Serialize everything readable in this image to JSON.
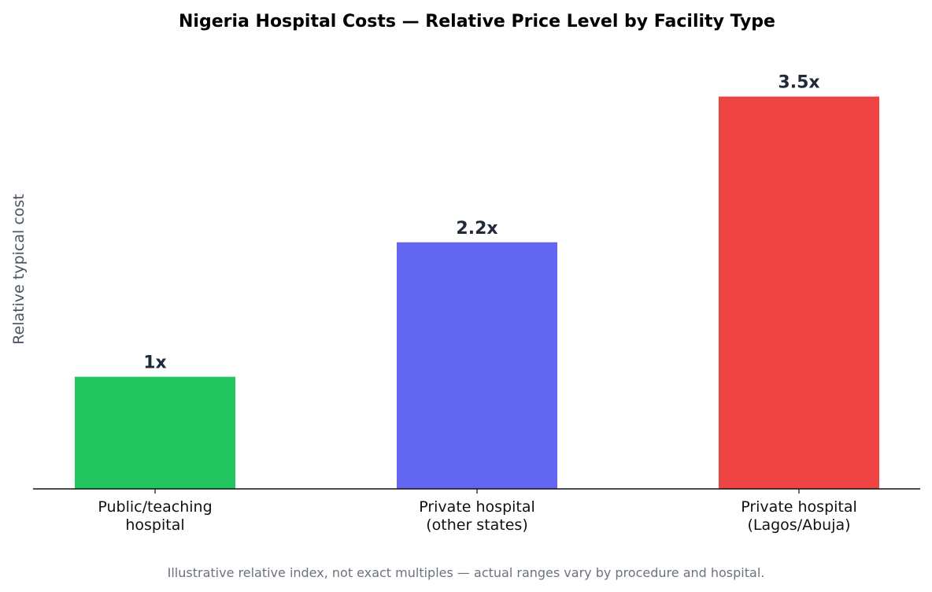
{
  "chart_data": {
    "type": "bar",
    "title": "Nigeria Hospital Costs — Relative Price Level by Facility Type",
    "ylabel": "Relative typical cost",
    "xlabel": "",
    "categories": [
      [
        "Public/teaching",
        "hospital"
      ],
      [
        "Private hospital",
        "(other states)"
      ],
      [
        "Private hospital",
        "(Lagos/Abuja)"
      ]
    ],
    "values": [
      1,
      2.2,
      3.5
    ],
    "value_labels": [
      "1x",
      "2.2x",
      "3.5x"
    ],
    "colors": [
      "#22c55e",
      "#6366f1",
      "#ef4444"
    ],
    "ylim": [
      0,
      4.2
    ],
    "grid": false,
    "footnote": "Illustrative relative index, not exact multiples — actual ranges vary by procedure and hospital."
  }
}
